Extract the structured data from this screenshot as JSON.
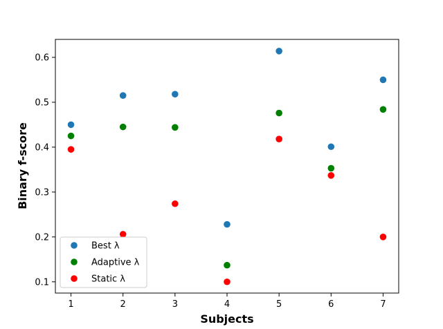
{
  "chart_data": {
    "type": "scatter",
    "title": "",
    "xlabel": "Subjects",
    "ylabel": "Binary f-score",
    "x": [
      1,
      2,
      3,
      4,
      5,
      6,
      7
    ],
    "xticks": [
      "1",
      "2",
      "3",
      "4",
      "5",
      "6",
      "7"
    ],
    "yticks": [
      "0.1",
      "0.2",
      "0.3",
      "0.4",
      "0.5",
      "0.6"
    ],
    "xlim": [
      0.7,
      7.3
    ],
    "ylim": [
      0.075,
      0.64
    ],
    "grid": false,
    "legend_position": "lower-left",
    "series": [
      {
        "name": "Best λ",
        "color": "#1f77b4",
        "values": [
          0.45,
          0.515,
          0.518,
          0.228,
          0.614,
          0.401,
          0.55
        ]
      },
      {
        "name": "Adaptive λ",
        "color": "#008000",
        "values": [
          0.425,
          0.445,
          0.444,
          0.137,
          0.476,
          0.353,
          0.484
        ]
      },
      {
        "name": "Static λ",
        "color": "#ff0000",
        "values": [
          0.395,
          0.206,
          0.274,
          0.1,
          0.418,
          0.337,
          0.2
        ]
      }
    ]
  }
}
